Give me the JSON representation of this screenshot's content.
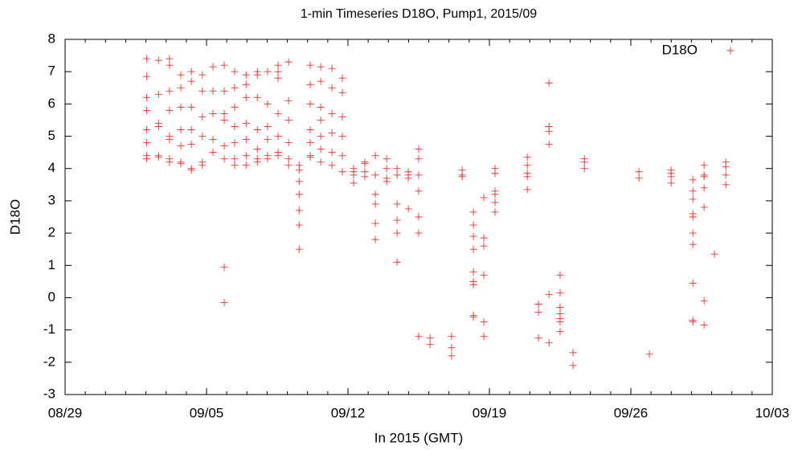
{
  "chart_data": {
    "type": "scatter",
    "title": "1-min Timeseries D18O, Pump1, 2015/09",
    "xlabel": "In 2015 (GMT)",
    "ylabel": "D18O",
    "legend": "top-right",
    "x": [
      "2015-09-02T01:00Z",
      "2015-09-02T01:00Z",
      "2015-09-02T01:00Z",
      "2015-09-02T01:00Z",
      "2015-09-02T01:00Z",
      "2015-09-02T01:00Z",
      "2015-09-02T01:00Z",
      "2015-09-02T01:00Z",
      "2015-09-02T15:00Z",
      "2015-09-02T15:00Z",
      "2015-09-02T15:00Z",
      "2015-09-02T15:00Z",
      "2015-09-02T15:00Z",
      "2015-09-02T15:00Z",
      "2015-09-03T04:00Z",
      "2015-09-03T04:00Z",
      "2015-09-03T04:00Z",
      "2015-09-03T04:00Z",
      "2015-09-03T04:00Z",
      "2015-09-03T04:00Z",
      "2015-09-03T04:00Z",
      "2015-09-03T04:00Z",
      "2015-09-03T17:30Z",
      "2015-09-03T17:30Z",
      "2015-09-03T17:30Z",
      "2015-09-03T17:30Z",
      "2015-09-03T17:30Z",
      "2015-09-03T17:30Z",
      "2015-09-03T17:30Z",
      "2015-09-04T06:00Z",
      "2015-09-04T06:00Z",
      "2015-09-04T06:00Z",
      "2015-09-04T06:00Z",
      "2015-09-04T06:00Z",
      "2015-09-04T06:00Z",
      "2015-09-04T06:00Z",
      "2015-09-04T19:00Z",
      "2015-09-04T19:00Z",
      "2015-09-04T19:00Z",
      "2015-09-04T19:00Z",
      "2015-09-04T19:00Z",
      "2015-09-04T19:00Z",
      "2015-09-05T07:40Z",
      "2015-09-05T07:40Z",
      "2015-09-05T07:40Z",
      "2015-09-05T07:40Z",
      "2015-09-05T07:40Z",
      "2015-09-05T21:00Z",
      "2015-09-05T21:00Z",
      "2015-09-05T21:00Z",
      "2015-09-05T21:00Z",
      "2015-09-05T21:00Z",
      "2015-09-05T21:00Z",
      "2015-09-05T21:00Z",
      "2015-09-05T21:00Z",
      "2015-09-06T09:20Z",
      "2015-09-06T09:20Z",
      "2015-09-06T09:20Z",
      "2015-09-06T09:20Z",
      "2015-09-06T09:20Z",
      "2015-09-06T09:20Z",
      "2015-09-06T09:20Z",
      "2015-09-06T23:00Z",
      "2015-09-06T23:00Z",
      "2015-09-06T23:00Z",
      "2015-09-06T23:00Z",
      "2015-09-06T23:00Z",
      "2015-09-06T23:00Z",
      "2015-09-06T23:00Z",
      "2015-09-07T12:20Z",
      "2015-09-07T12:20Z",
      "2015-09-07T12:20Z",
      "2015-09-07T12:20Z",
      "2015-09-07T12:20Z",
      "2015-09-07T12:20Z",
      "2015-09-07T12:20Z",
      "2015-09-08T00:30Z",
      "2015-09-08T00:30Z",
      "2015-09-08T00:30Z",
      "2015-09-08T00:30Z",
      "2015-09-08T00:30Z",
      "2015-09-08T00:30Z",
      "2015-09-08T13:00Z",
      "2015-09-08T13:00Z",
      "2015-09-08T13:00Z",
      "2015-09-08T13:00Z",
      "2015-09-08T13:00Z",
      "2015-09-08T13:00Z",
      "2015-09-08T13:00Z",
      "2015-09-09T01:30Z",
      "2015-09-09T01:30Z",
      "2015-09-09T01:30Z",
      "2015-09-09T01:30Z",
      "2015-09-09T01:30Z",
      "2015-09-09T01:30Z",
      "2015-09-09T14:00Z",
      "2015-09-09T14:00Z",
      "2015-09-09T14:00Z",
      "2015-09-09T14:00Z",
      "2015-09-09T14:00Z",
      "2015-09-09T14:00Z",
      "2015-09-09T14:00Z",
      "2015-09-10T03:10Z",
      "2015-09-10T03:10Z",
      "2015-09-10T03:10Z",
      "2015-09-10T03:10Z",
      "2015-09-10T03:10Z",
      "2015-09-10T03:10Z",
      "2015-09-10T03:10Z",
      "2015-09-10T15:40Z",
      "2015-09-10T15:40Z",
      "2015-09-10T15:40Z",
      "2015-09-10T15:40Z",
      "2015-09-10T15:40Z",
      "2015-09-10T15:40Z",
      "2015-09-10T15:40Z",
      "2015-09-11T05:00Z",
      "2015-09-11T05:00Z",
      "2015-09-11T05:00Z",
      "2015-09-11T05:00Z",
      "2015-09-11T05:00Z",
      "2015-09-11T05:00Z",
      "2015-09-11T17:20Z",
      "2015-09-11T17:20Z",
      "2015-09-11T17:20Z",
      "2015-09-11T17:20Z",
      "2015-09-11T17:20Z",
      "2015-09-11T17:20Z",
      "2015-09-12T06:40Z",
      "2015-09-12T06:40Z",
      "2015-09-12T06:40Z",
      "2015-09-12T06:40Z",
      "2015-09-12T20:00Z",
      "2015-09-12T20:00Z",
      "2015-09-12T20:00Z",
      "2015-09-12T20:00Z",
      "2015-09-13T08:30Z",
      "2015-09-13T08:30Z",
      "2015-09-13T08:30Z",
      "2015-09-13T08:30Z",
      "2015-09-13T08:30Z",
      "2015-09-13T08:30Z",
      "2015-09-13T22:00Z",
      "2015-09-13T22:00Z",
      "2015-09-13T22:00Z",
      "2015-09-13T22:00Z",
      "2015-09-14T10:20Z",
      "2015-09-14T10:20Z",
      "2015-09-14T10:20Z",
      "2015-09-14T10:20Z",
      "2015-09-14T10:20Z",
      "2015-09-14T10:20Z",
      "2015-09-14T23:40Z",
      "2015-09-14T23:40Z",
      "2015-09-14T23:40Z",
      "2015-09-14T23:40Z",
      "2015-09-15T12:00Z",
      "2015-09-15T12:00Z",
      "2015-09-15T12:00Z",
      "2015-09-15T12:00Z",
      "2015-09-15T12:00Z",
      "2015-09-15T12:00Z",
      "2015-09-15T12:00Z",
      "2015-09-16T01:30Z",
      "2015-09-16T01:30Z",
      "2015-09-17T03:00Z",
      "2015-09-17T03:00Z",
      "2015-09-17T03:00Z",
      "2015-09-17T15:40Z",
      "2015-09-17T15:40Z",
      "2015-09-17T15:40Z",
      "2015-09-18T05:00Z",
      "2015-09-18T05:00Z",
      "2015-09-18T05:00Z",
      "2015-09-18T05:00Z",
      "2015-09-18T05:00Z",
      "2015-09-18T05:00Z",
      "2015-09-18T05:00Z",
      "2015-09-18T05:00Z",
      "2015-09-18T05:00Z",
      "2015-09-18T17:20Z",
      "2015-09-18T17:20Z",
      "2015-09-18T17:20Z",
      "2015-09-18T17:20Z",
      "2015-09-18T17:20Z",
      "2015-09-18T17:20Z",
      "2015-09-19T06:40Z",
      "2015-09-19T06:40Z",
      "2015-09-19T06:40Z",
      "2015-09-19T06:40Z",
      "2015-09-19T06:40Z",
      "2015-09-19T06:40Z",
      "2015-09-20T21:00Z",
      "2015-09-20T21:00Z",
      "2015-09-20T21:00Z",
      "2015-09-20T21:00Z",
      "2015-09-20T21:00Z",
      "2015-09-21T10:20Z",
      "2015-09-21T10:20Z",
      "2015-09-21T10:20Z",
      "2015-09-21T22:50Z",
      "2015-09-21T22:50Z",
      "2015-09-21T22:50Z",
      "2015-09-21T22:50Z",
      "2015-09-21T22:50Z",
      "2015-09-21T22:50Z",
      "2015-09-22T12:00Z",
      "2015-09-22T12:00Z",
      "2015-09-22T12:00Z",
      "2015-09-22T12:00Z",
      "2015-09-22T12:00Z",
      "2015-09-22T12:00Z",
      "2015-09-22T12:00Z",
      "2015-09-23T03:20Z",
      "2015-09-23T03:20Z",
      "2015-09-23T16:50Z",
      "2015-09-23T16:50Z",
      "2015-09-23T16:50Z",
      "2015-09-26T09:40Z",
      "2015-09-26T09:40Z",
      "2015-09-26T22:00Z",
      "2015-09-27T23:50Z",
      "2015-09-27T23:50Z",
      "2015-09-27T23:50Z",
      "2015-09-27T23:50Z",
      "2015-09-29T01:40Z",
      "2015-09-29T01:40Z",
      "2015-09-29T01:40Z",
      "2015-09-29T01:40Z",
      "2015-09-29T01:40Z",
      "2015-09-29T01:40Z",
      "2015-09-29T01:40Z",
      "2015-09-29T01:40Z",
      "2015-09-29T01:40Z",
      "2015-09-29T01:40Z",
      "2015-09-29T15:00Z",
      "2015-09-29T15:00Z",
      "2015-09-29T15:00Z",
      "2015-09-29T15:00Z",
      "2015-09-29T15:00Z",
      "2015-09-29T15:00Z",
      "2015-09-29T15:00Z",
      "2015-09-30T03:20Z",
      "2015-09-30T16:50Z",
      "2015-09-30T16:50Z",
      "2015-09-30T16:50Z",
      "2015-09-30T16:50Z"
    ],
    "series": [
      {
        "name": "D18O",
        "color": "#e8322e",
        "values": [
          7.4,
          6.85,
          6.2,
          5.8,
          5.2,
          4.8,
          4.4,
          4.3,
          7.35,
          6.3,
          5.4,
          5.3,
          4.4,
          4.35,
          7.4,
          7.2,
          6.4,
          5.8,
          5.0,
          4.9,
          4.3,
          4.2,
          6.9,
          6.5,
          5.9,
          5.2,
          4.7,
          4.2,
          4.15,
          7.0,
          6.7,
          5.9,
          5.2,
          4.75,
          4.0,
          3.95,
          6.9,
          6.4,
          5.6,
          5.0,
          4.2,
          4.1,
          7.15,
          6.4,
          5.7,
          4.9,
          4.5,
          7.2,
          6.4,
          5.7,
          5.5,
          4.7,
          4.3,
          0.95,
          -0.15,
          7.0,
          6.5,
          5.9,
          5.3,
          4.8,
          4.3,
          4.1,
          6.9,
          6.6,
          6.2,
          5.4,
          4.9,
          4.4,
          4.1,
          7.0,
          6.9,
          6.2,
          5.2,
          4.6,
          4.3,
          4.2,
          7.0,
          6.0,
          5.3,
          4.9,
          4.4,
          4.3,
          7.2,
          7.0,
          6.8,
          5.7,
          5.0,
          4.5,
          4.4,
          7.3,
          6.1,
          5.5,
          4.8,
          4.3,
          4.1,
          4.1,
          3.95,
          3.6,
          3.2,
          2.7,
          2.25,
          1.5,
          7.2,
          6.6,
          6.0,
          5.2,
          4.8,
          4.4,
          4.35,
          7.15,
          6.7,
          5.9,
          5.5,
          5.0,
          4.6,
          4.2,
          7.1,
          6.5,
          5.7,
          5.1,
          4.5,
          4.1,
          6.8,
          6.35,
          5.6,
          5.0,
          4.4,
          3.9,
          4.0,
          3.8,
          3.55,
          3.9,
          4.2,
          4.15,
          3.9,
          3.75,
          4.4,
          3.8,
          3.2,
          2.9,
          2.3,
          1.8,
          4.3,
          4.0,
          3.7,
          3.6,
          4.0,
          3.8,
          2.9,
          2.4,
          2.0,
          1.1,
          3.9,
          3.8,
          3.7,
          2.75,
          4.6,
          4.3,
          3.8,
          3.3,
          2.5,
          2.0,
          -1.2,
          -1.25,
          -1.45,
          -1.2,
          -1.55,
          -1.8,
          3.95,
          3.8,
          3.75,
          2.65,
          2.25,
          1.9,
          1.5,
          0.8,
          0.5,
          0.4,
          -0.55,
          -0.6,
          3.1,
          1.85,
          1.6,
          0.7,
          -0.75,
          -1.2,
          4.0,
          3.85,
          3.3,
          3.2,
          2.95,
          2.65,
          4.35,
          4.1,
          3.85,
          3.75,
          3.35,
          -0.2,
          -0.45,
          -1.25,
          6.65,
          5.3,
          5.15,
          4.75,
          0.1,
          -1.4,
          0.7,
          0.15,
          -0.3,
          -0.5,
          -0.65,
          -0.75,
          -1.05,
          -1.7,
          -2.1,
          4.3,
          4.2,
          4.0,
          3.9,
          3.7,
          -1.75,
          3.95,
          3.85,
          3.75,
          3.55,
          3.65,
          3.3,
          3.05,
          2.6,
          2.5,
          2.0,
          1.65,
          0.45,
          -0.7,
          -0.75,
          4.1,
          3.8,
          3.75,
          3.4,
          2.8,
          -0.1,
          -0.85,
          1.35,
          4.2,
          4.05,
          3.8,
          3.5
        ]
      }
    ],
    "xlim": [
      "2015-08-29",
      "2015-10-03"
    ],
    "xticks": [
      {
        "value": "2015-08-29",
        "label": "08/29"
      },
      {
        "value": "2015-09-05",
        "label": "09/05"
      },
      {
        "value": "2015-09-12",
        "label": "09/12"
      },
      {
        "value": "2015-09-19",
        "label": "09/19"
      },
      {
        "value": "2015-09-26",
        "label": "09/26"
      },
      {
        "value": "2015-10-03",
        "label": "10/03"
      }
    ],
    "ylim": [
      -3,
      8
    ],
    "yticks": [
      -3,
      -2,
      -1,
      0,
      1,
      2,
      3,
      4,
      5,
      6,
      7,
      8
    ],
    "grid": false
  }
}
